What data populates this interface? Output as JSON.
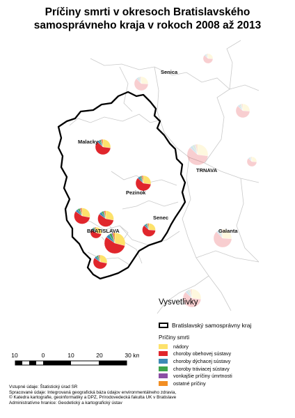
{
  "title": {
    "line1": "Príčiny smrti v okresoch Bratislavského",
    "line2": "samosprávneho kraja v rokoch 2008 až 2013"
  },
  "towns": {
    "senica": "Senica",
    "malacky": "Malacky",
    "trnava": "TRNAVA",
    "pezinok": "Pezinok",
    "senec": "Senec",
    "bratislava": "BRATISLAVA",
    "galanta": "Galanta"
  },
  "legend": {
    "title": "Vysvetlivky",
    "region_label": "Bratislavský samosprávny kraj",
    "subtitle": "Príčiny smrti",
    "items": [
      {
        "label": "nádory",
        "color": "#fde26b"
      },
      {
        "label": "choroby obehovej sústavy",
        "color": "#e0262c"
      },
      {
        "label": "choroby dýchacej sústavy",
        "color": "#3d8ab5"
      },
      {
        "label": "choroby tráviacej sústavy",
        "color": "#3fa54a"
      },
      {
        "label": "vonkajšie príčiny úmrtnosti",
        "color": "#8b4fa4"
      },
      {
        "label": "ostatné príčiny",
        "color": "#f28e23"
      }
    ]
  },
  "scale": {
    "labels": [
      "10",
      "0",
      "10",
      "20",
      "30 km"
    ]
  },
  "sources": [
    "Vstupné údaje: Štatistický úrad SR",
    "Spracované údaje: Integrovaná geografická báza údajov environmentálneho zdravia,",
    "© Katedra kartografie, geoinformatiky a DPZ, Prírodovedecká fakulta UK v Bratislave",
    "Administratívne hranice: Geodetický a kartografický ústav"
  ],
  "colors": {
    "neoplasms": "#fde26b",
    "circulatory": "#e0262c",
    "respiratory": "#3d8ab5",
    "digestive": "#3fa54a",
    "external": "#8b4fa4",
    "other": "#f28e23",
    "district_border": "#c9c9c9",
    "region_border": "#000000"
  },
  "districts": [
    {
      "id": "malacky",
      "shares": [
        0.27,
        0.6,
        0.05,
        0.03,
        0.02,
        0.03
      ],
      "faded": false
    },
    {
      "id": "pezinok",
      "shares": [
        0.27,
        0.6,
        0.05,
        0.03,
        0.02,
        0.03
      ],
      "faded": false
    },
    {
      "id": "senec",
      "shares": [
        0.26,
        0.61,
        0.05,
        0.03,
        0.02,
        0.03
      ],
      "faded": false
    },
    {
      "id": "bratislava-1",
      "shares": [
        0.28,
        0.57,
        0.06,
        0.04,
        0.02,
        0.03
      ],
      "faded": false
    },
    {
      "id": "bratislava-2",
      "shares": [
        0.28,
        0.57,
        0.06,
        0.04,
        0.02,
        0.03
      ],
      "faded": false
    },
    {
      "id": "bratislava-3",
      "shares": [
        0.29,
        0.56,
        0.06,
        0.04,
        0.02,
        0.03
      ],
      "faded": false
    },
    {
      "id": "bratislava-4",
      "shares": [
        0.29,
        0.56,
        0.06,
        0.04,
        0.02,
        0.03
      ],
      "faded": false
    },
    {
      "id": "bratislava-5",
      "shares": [
        0.28,
        0.57,
        0.06,
        0.04,
        0.02,
        0.03
      ],
      "faded": false
    },
    {
      "id": "senica",
      "shares": [
        0.26,
        0.62,
        0.05,
        0.03,
        0.02,
        0.02
      ],
      "faded": true
    },
    {
      "id": "trnava",
      "shares": [
        0.27,
        0.6,
        0.05,
        0.03,
        0.02,
        0.03
      ],
      "faded": true
    },
    {
      "id": "galanta",
      "shares": [
        0.26,
        0.62,
        0.05,
        0.03,
        0.02,
        0.02
      ],
      "faded": true
    },
    {
      "id": "dunajska-streda",
      "shares": [
        0.27,
        0.6,
        0.05,
        0.03,
        0.02,
        0.03
      ],
      "faded": true
    },
    {
      "id": "hlohovec",
      "shares": [
        0.26,
        0.61,
        0.05,
        0.03,
        0.02,
        0.03
      ],
      "faded": true
    },
    {
      "id": "piestany",
      "shares": [
        0.26,
        0.61,
        0.05,
        0.03,
        0.02,
        0.03
      ],
      "faded": true
    },
    {
      "id": "skalica",
      "shares": [
        0.26,
        0.61,
        0.05,
        0.03,
        0.02,
        0.03
      ],
      "faded": true
    }
  ]
}
